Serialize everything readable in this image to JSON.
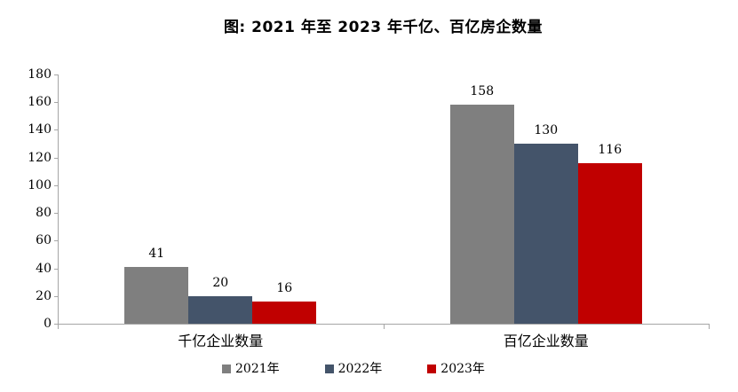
{
  "figure": {
    "title": "图: 2021 年至 2023 年千亿、百亿房企数量"
  },
  "chart_data": {
    "type": "bar",
    "title": "图: 2021 年至 2023 年千亿、百亿房企数量",
    "categories": [
      "千亿企业数量",
      "百亿企业数量"
    ],
    "series": [
      {
        "name": "2021年",
        "color": "#7F7F7F",
        "values": [
          41,
          158
        ]
      },
      {
        "name": "2022年",
        "color": "#44546A",
        "values": [
          20,
          130
        ]
      },
      {
        "name": "2023年",
        "color": "#C00000",
        "values": [
          16,
          116
        ]
      }
    ],
    "ylim": [
      0,
      180
    ],
    "yticks": [
      0,
      20,
      40,
      60,
      80,
      100,
      120,
      140,
      160,
      180
    ],
    "grid": false,
    "show_data_labels": true,
    "legend_position": "bottom",
    "axis_color": "#A6A6A6",
    "text_color": "#000000"
  }
}
